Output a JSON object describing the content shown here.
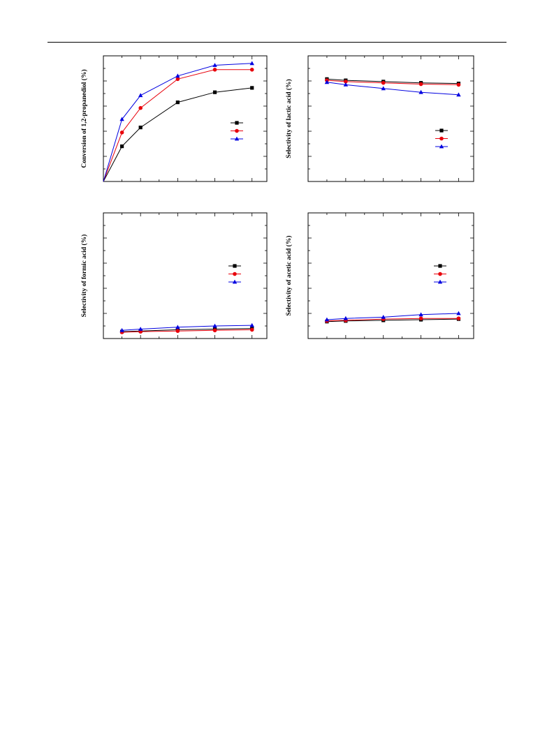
{
  "chart_data": [
    {
      "type": "line",
      "ylabel": "Conversion of 1,2-propanediol (%)",
      "xlabel": "",
      "x": [
        0,
        1,
        2,
        4,
        6,
        8
      ],
      "xlim": [
        0,
        8.8
      ],
      "ylim": [
        0,
        100
      ],
      "yticks": [
        0,
        20,
        40,
        60,
        80,
        100
      ],
      "legend": "right",
      "series": [
        {
          "marker": "square",
          "color": "#000000",
          "values": [
            0,
            28,
            43,
            63,
            71,
            74.5
          ]
        },
        {
          "marker": "circle",
          "color": "#e8000b",
          "values": [
            0,
            39,
            58.5,
            81.5,
            89,
            89
          ]
        },
        {
          "marker": "triangle",
          "color": "#0000e0",
          "values": [
            0,
            49.5,
            68.5,
            84,
            92.5,
            94
          ]
        }
      ]
    },
    {
      "type": "line",
      "ylabel": "Selectivity of lactic acid (%)",
      "xlabel": "",
      "x": [
        1,
        2,
        4,
        6,
        8
      ],
      "xlim": [
        0,
        8.8
      ],
      "ylim": [
        0,
        100
      ],
      "yticks": [
        0,
        20,
        40,
        60,
        80,
        100
      ],
      "legend": "right",
      "series": [
        {
          "marker": "square",
          "color": "#000000",
          "values": [
            81.5,
            80.5,
            79.5,
            78.5,
            78
          ]
        },
        {
          "marker": "circle",
          "color": "#e8000b",
          "values": [
            80.5,
            79.5,
            78.5,
            77.5,
            77
          ]
        },
        {
          "marker": "triangle",
          "color": "#0000e0",
          "values": [
            79,
            77,
            74,
            71,
            69
          ]
        }
      ]
    },
    {
      "type": "line",
      "ylabel": "Selectivity of formic acid (%)",
      "xlabel": "",
      "x": [
        1,
        2,
        4,
        6,
        8
      ],
      "xlim": [
        0,
        8.8
      ],
      "ylim": [
        0,
        100
      ],
      "yticks": [
        0,
        20,
        40,
        60,
        80,
        100
      ],
      "legend": "right",
      "series": [
        {
          "marker": "square",
          "color": "#000000",
          "values": [
            5.5,
            6,
            7,
            7.5,
            8
          ]
        },
        {
          "marker": "circle",
          "color": "#e8000b",
          "values": [
            5,
            5.5,
            6,
            6.5,
            7
          ]
        },
        {
          "marker": "triangle",
          "color": "#0000e0",
          "values": [
            6.5,
            7.5,
            9,
            10,
            10.5
          ]
        }
      ]
    },
    {
      "type": "line",
      "ylabel": "Selectivity of acetic acid (%)",
      "xlabel": "",
      "x": [
        1,
        2,
        4,
        6,
        8
      ],
      "xlim": [
        0,
        8.8
      ],
      "ylim": [
        0,
        100
      ],
      "yticks": [
        0,
        20,
        40,
        60,
        80,
        100
      ],
      "legend": "right",
      "series": [
        {
          "marker": "square",
          "color": "#000000",
          "values": [
            13.5,
            14,
            14.5,
            15,
            15.5
          ]
        },
        {
          "marker": "circle",
          "color": "#e8000b",
          "values": [
            14,
            14.5,
            15.5,
            16,
            16
          ]
        },
        {
          "marker": "triangle",
          "color": "#0000e0",
          "values": [
            15,
            16,
            17,
            19,
            20
          ]
        }
      ]
    }
  ]
}
